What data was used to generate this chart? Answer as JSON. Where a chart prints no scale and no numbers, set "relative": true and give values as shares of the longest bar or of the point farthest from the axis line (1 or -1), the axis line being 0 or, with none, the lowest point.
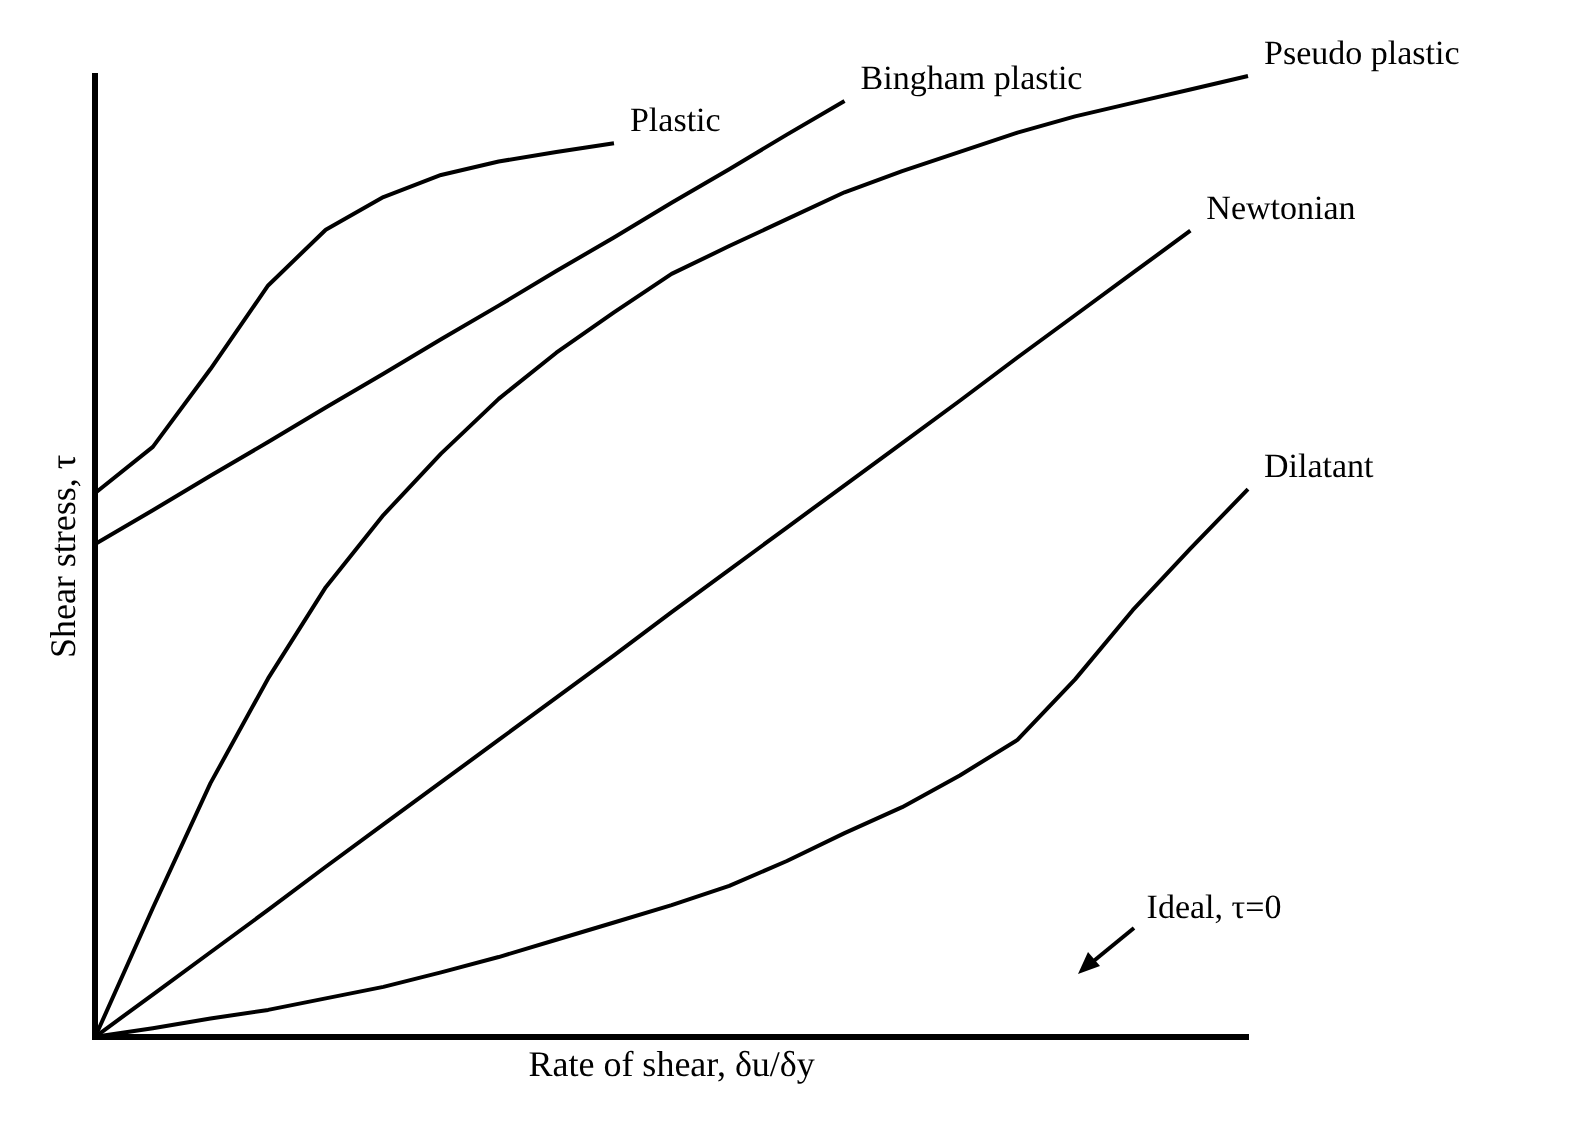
{
  "chart_data": {
    "type": "line",
    "relative": true,
    "xlabel": "Rate of shear, δu/δy",
    "ylabel": "Shear stress, τ",
    "legend": false,
    "grid": false,
    "marker": "none",
    "tick_labels": false,
    "annotations": [
      "Ideal, τ=0"
    ],
    "categories": [
      null,
      null,
      null,
      null,
      null,
      null,
      null,
      null,
      null,
      null,
      null,
      null,
      null,
      null,
      null,
      null,
      null,
      null,
      null,
      null,
      null
    ],
    "series": [
      {
        "name": "Plastic",
        "color": "#000000",
        "values": [
          0.566,
          0.614,
          0.695,
          0.782,
          0.84,
          0.874,
          0.897,
          0.911,
          0.921,
          0.93,
          null,
          null,
          null,
          null,
          null,
          null,
          null,
          null,
          null,
          null,
          null
        ]
      },
      {
        "name": "Bingham plastic",
        "color": "#000000",
        "values": [
          0.513,
          0.548,
          0.584,
          0.619,
          0.655,
          0.69,
          0.726,
          0.761,
          0.797,
          0.832,
          0.868,
          0.903,
          0.939,
          0.974,
          null,
          null,
          null,
          null,
          null,
          null,
          null
        ]
      },
      {
        "name": "Pseudo plastic",
        "color": "#000000",
        "values": [
          0,
          0.134,
          0.264,
          0.373,
          0.468,
          0.543,
          0.607,
          0.664,
          0.712,
          0.754,
          0.794,
          0.823,
          0.851,
          0.879,
          0.901,
          0.921,
          0.941,
          0.958,
          0.972,
          0.986,
          1
        ]
      },
      {
        "name": "Newtonian",
        "color": "#000000",
        "values": [
          0,
          0.044,
          0.088,
          0.132,
          0.177,
          0.221,
          0.265,
          0.309,
          0.353,
          0.397,
          0.442,
          0.486,
          0.53,
          0.574,
          0.618,
          0.662,
          0.707,
          0.751,
          0.795,
          0.839,
          null
        ]
      },
      {
        "name": "Dilatant",
        "color": "#000000",
        "values": [
          0,
          0.009,
          0.019,
          0.028,
          0.04,
          0.052,
          0.067,
          0.083,
          0.101,
          0.119,
          0.137,
          0.157,
          0.183,
          0.212,
          0.239,
          0.272,
          0.309,
          0.372,
          0.444,
          0.508,
          0.57
        ]
      }
    ]
  }
}
